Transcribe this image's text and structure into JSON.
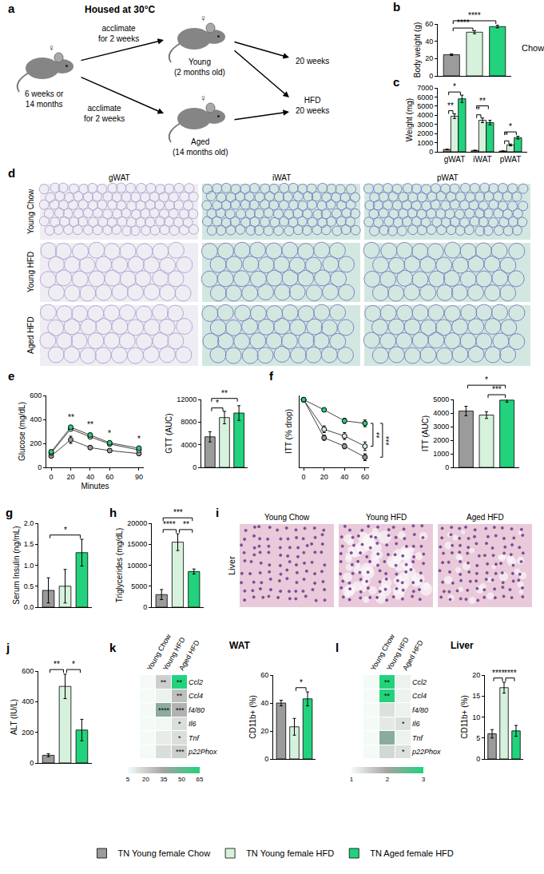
{
  "diagram": {
    "panel": "a",
    "header": "Housed at 30°C",
    "mice": [
      {
        "sex": "♀",
        "label": [
          "6 weeks or",
          "14 months"
        ]
      },
      {
        "sex": "♀",
        "label": [
          "Young",
          "(2 months old)"
        ]
      },
      {
        "sex": "♀",
        "label": [
          "Aged",
          "(14 months old)"
        ]
      }
    ],
    "arrows": [
      [
        "acclimate",
        "for 2 weeks"
      ],
      [
        "acclimate",
        "for 2 weeks"
      ]
    ],
    "outcomes": [
      [
        "20 weeks"
      ],
      [
        "HFD",
        "20 weeks"
      ]
    ]
  },
  "histology": [
    {
      "panel": "d",
      "columns": [
        "gWAT",
        "iWAT",
        "pWAT"
      ],
      "rows": [
        "Young Chow",
        "Young HFD",
        "Aged HFD"
      ]
    },
    {
      "panel": "i",
      "title": "Liver",
      "columns": [
        "Young Chow",
        "Young HFD",
        "Aged HFD"
      ]
    }
  ],
  "chart_data": [
    {
      "panel": "b",
      "type": "bar",
      "ytitle": "Body weight (g)",
      "annotation": "Chow",
      "categories": [
        null,
        null,
        null
      ],
      "values": [
        24.5,
        50.5,
        57
      ],
      "errors": [
        1,
        1.8,
        1.5
      ],
      "colors": [
        "#9b9b9b",
        "#d6f1dc",
        "#22d27c"
      ],
      "ylim": [
        0,
        60
      ],
      "yticks": [
        0,
        20,
        40,
        60
      ],
      "significance": [
        {
          "from": 0,
          "to": 1,
          "label": "****"
        },
        {
          "from": 0,
          "to": 2,
          "label": "****"
        }
      ]
    },
    {
      "panel": "c",
      "type": "bar",
      "ytitle": "Weight (mg)",
      "legend": "bottom",
      "categories": [
        "gWAT",
        "iWAT",
        "pWAT"
      ],
      "series": [
        {
          "name": "TN Young female Chow",
          "color": "#9b9b9b",
          "values": [
            250,
            150,
            80
          ],
          "errors": [
            40,
            30,
            20
          ]
        },
        {
          "name": "TN Young female HFD",
          "color": "#d6f1dc",
          "values": [
            3900,
            3450,
            750
          ],
          "errors": [
            250,
            250,
            100
          ]
        },
        {
          "name": "TN Aged female HFD",
          "color": "#22d27c",
          "values": [
            5800,
            3200,
            1550
          ],
          "errors": [
            400,
            250,
            150
          ]
        }
      ],
      "ylim": [
        0,
        7000
      ],
      "yticks": [
        0,
        1000,
        2000,
        3000,
        4000,
        5000,
        6000,
        7000
      ],
      "significance": [
        {
          "category": 0,
          "from": 0,
          "to": 1,
          "label": "**"
        },
        {
          "category": 0,
          "from": 0,
          "to": 2,
          "label": "*"
        },
        {
          "category": 1,
          "from": 0,
          "to": 1,
          "label": "*"
        },
        {
          "category": 1,
          "from": 0,
          "to": 2,
          "label": "**"
        },
        {
          "category": 2,
          "from": 0,
          "to": 1,
          "label": "*"
        },
        {
          "category": 2,
          "from": 0,
          "to": 2,
          "label": "*"
        }
      ]
    },
    {
      "panel": "e",
      "type": "line",
      "xtitle": "Minutes",
      "ytitle": "Glucose (mg/dL)",
      "marker": "circle",
      "x": [
        0,
        20,
        40,
        60,
        90
      ],
      "xlim": [
        -5,
        95
      ],
      "xticks": [
        0,
        20,
        40,
        60,
        90
      ],
      "ylim": [
        0,
        600
      ],
      "yticks": [
        0,
        200,
        400,
        600
      ],
      "series": [
        {
          "name": "TN Young female Chow",
          "color": "#9b9b9b",
          "values": [
            95,
            230,
            165,
            140,
            115
          ],
          "errors": [
            10,
            30,
            15,
            12,
            10
          ]
        },
        {
          "name": "TN Young female HFD",
          "color": "#d6f1dc",
          "values": [
            120,
            320,
            255,
            195,
            145
          ],
          "errors": [
            10,
            15,
            15,
            12,
            10
          ]
        },
        {
          "name": "TN Aged female HFD",
          "color": "#22d27c",
          "values": [
            130,
            335,
            270,
            205,
            160
          ],
          "errors": [
            10,
            15,
            15,
            10,
            10
          ]
        }
      ],
      "point_labels": [
        {
          "x": 20,
          "label": "**"
        },
        {
          "x": 40,
          "label": "**"
        },
        {
          "x": 60,
          "label": "*"
        },
        {
          "x": 90,
          "label": "*"
        }
      ]
    },
    {
      "type": "bar",
      "ytitle": "GTT (AUC)",
      "categories": [
        null,
        null,
        null
      ],
      "values": [
        5400,
        8800,
        9600
      ],
      "errors": [
        900,
        1100,
        1300
      ],
      "colors": [
        "#9b9b9b",
        "#d6f1dc",
        "#22d27c"
      ],
      "ylim": [
        0,
        12000
      ],
      "yticks": [
        0,
        4000,
        8000,
        12000
      ],
      "significance": [
        {
          "from": 0,
          "to": 1,
          "label": "*"
        },
        {
          "from": 0,
          "to": 2,
          "label": "**"
        }
      ]
    },
    {
      "panel": "f",
      "type": "line",
      "ytitle": "ITT (% drop)",
      "marker": "circle",
      "tick_labels": "x",
      "x": [
        0,
        20,
        40,
        60
      ],
      "xlim": [
        -4,
        64
      ],
      "xticks": [
        0,
        20,
        40,
        60
      ],
      "ylim": [
        20,
        105
      ],
      "series": [
        {
          "name": "TN Young female Chow",
          "color": "#9b9b9b",
          "values": [
            100,
            55,
            45,
            32
          ],
          "errors": [
            0,
            3,
            3,
            4
          ]
        },
        {
          "name": "TN Young female HFD",
          "color": "#d6f1dc",
          "values": [
            100,
            65,
            57,
            45
          ],
          "errors": [
            0,
            4,
            4,
            5
          ]
        },
        {
          "name": "TN Aged female HFD",
          "color": "#22d27c",
          "values": [
            100,
            88,
            75,
            72
          ],
          "errors": [
            0,
            2,
            3,
            4
          ]
        }
      ],
      "significance": [
        {
          "x": 60,
          "from": 2,
          "to": 1,
          "label": "**"
        },
        {
          "x": 60,
          "from": 2,
          "to": 0,
          "label": "***"
        }
      ]
    },
    {
      "type": "bar",
      "ytitle": "ITT (AUC)",
      "categories": [
        null,
        null,
        null
      ],
      "values": [
        4150,
        3850,
        4950
      ],
      "errors": [
        350,
        250,
        150
      ],
      "colors": [
        "#9b9b9b",
        "#d6f1dc",
        "#22d27c"
      ],
      "ylim": [
        0,
        5000
      ],
      "yticks": [
        0,
        1000,
        2000,
        3000,
        4000,
        5000
      ],
      "significance": [
        {
          "from": 1,
          "to": 2,
          "label": "***"
        },
        {
          "from": 0,
          "to": 2,
          "label": "*"
        }
      ]
    },
    {
      "panel": "g",
      "type": "bar",
      "ytitle": "Serum Insulin (ng/mL)",
      "categories": [
        null,
        null,
        null
      ],
      "values": [
        0.4,
        0.5,
        1.3
      ],
      "errors": [
        0.3,
        0.4,
        0.32
      ],
      "colors": [
        "#9b9b9b",
        "#d6f1dc",
        "#22d27c"
      ],
      "ylim": [
        0,
        2
      ],
      "yticks": [
        {
          "value": 0,
          "label": "0.0"
        },
        0.5,
        {
          "value": 1,
          "label": "1.0"
        },
        1.5,
        {
          "value": 2,
          "label": "2.0"
        }
      ],
      "significance": [
        {
          "from": 0,
          "to": 2,
          "label": "*"
        }
      ]
    },
    {
      "panel": "h",
      "type": "bar",
      "ytitle": "Triglycerides (mg/dL)",
      "categories": [
        null,
        null,
        null
      ],
      "values": [
        3000,
        15500,
        8500
      ],
      "errors": [
        1200,
        2000,
        600
      ],
      "colors": [
        "#9b9b9b",
        "#d6f1dc",
        "#22d27c"
      ],
      "ylim": [
        0,
        20000
      ],
      "yticks": [
        0,
        5000,
        10000,
        15000,
        20000
      ],
      "significance": [
        {
          "from": 0,
          "to": 1,
          "label": "****"
        },
        {
          "from": 1,
          "to": 2,
          "label": "**"
        },
        {
          "from": 0,
          "to": 2,
          "label": "***"
        }
      ]
    },
    {
      "panel": "j",
      "type": "bar",
      "ytitle": "ALT (IU/L)",
      "categories": [
        null,
        null,
        null
      ],
      "values": [
        50,
        500,
        215
      ],
      "errors": [
        10,
        80,
        70
      ],
      "colors": [
        "#9b9b9b",
        "#d6f1dc",
        "#22d27c"
      ],
      "ylim": [
        0,
        600
      ],
      "yticks": [
        0,
        200,
        400,
        600
      ],
      "significance": [
        {
          "from": 0,
          "to": 1,
          "label": "**"
        },
        {
          "from": 1,
          "to": 2,
          "label": "*"
        }
      ]
    },
    {
      "panel": "k",
      "type": "heatmap",
      "title": "WAT",
      "columns": [
        "Young Chow",
        "Young HFD",
        "Aged HFD"
      ],
      "rows": [
        "Ccl2",
        "Ccl4",
        "f4/80",
        "Il6",
        "Tnf",
        "p22Phox"
      ],
      "cells": [
        [
          5,
          20,
          65
        ],
        [
          5,
          8,
          25
        ],
        [
          5,
          40,
          30
        ],
        [
          5,
          6,
          15
        ],
        [
          5,
          10,
          15
        ],
        [
          5,
          15,
          20
        ]
      ],
      "cell_labels": [
        [
          null,
          "**",
          "**"
        ],
        [
          null,
          null,
          "**"
        ],
        [
          null,
          "****",
          "***"
        ],
        [
          null,
          null,
          "*"
        ],
        [
          null,
          null,
          "*"
        ],
        [
          null,
          null,
          "***"
        ]
      ],
      "colorscale": [
        "#f4fbf6",
        "#a3a3a3",
        "#22d27c"
      ],
      "colorbar": {
        "range": [
          5,
          65
        ],
        "ticks": [
          5,
          20,
          35,
          50,
          65
        ]
      }
    },
    {
      "type": "bar",
      "ytitle": "CD11b+ (%)",
      "categories": [
        null,
        null,
        null
      ],
      "values": [
        40,
        23,
        43
      ],
      "errors": [
        2,
        6,
        5
      ],
      "colors": [
        "#9b9b9b",
        "#d6f1dc",
        "#22d27c"
      ],
      "ylim": [
        0,
        60
      ],
      "yticks": [
        0,
        20,
        40,
        60
      ],
      "significance": [
        {
          "from": 1,
          "to": 2,
          "label": "*"
        }
      ]
    },
    {
      "panel": "l",
      "type": "heatmap",
      "title": "Liver",
      "columns": [
        "Young Chow",
        "Young HFD",
        "Aged HFD"
      ],
      "rows": [
        "Ccl2",
        "Ccl4",
        "f4/80",
        "Il6",
        "Tnf",
        "p22Phox"
      ],
      "cells": [
        [
          1,
          3,
          1.1
        ],
        [
          1,
          3,
          1.1
        ],
        [
          1,
          1.3,
          1.1
        ],
        [
          1,
          1.2,
          1.3
        ],
        [
          1,
          2.2,
          1.1
        ],
        [
          1,
          1.4,
          1.3
        ]
      ],
      "cell_labels": [
        [
          null,
          "**",
          null
        ],
        [
          null,
          "**",
          null
        ],
        [
          null,
          null,
          null
        ],
        [
          null,
          null,
          "*"
        ],
        [
          null,
          null,
          null
        ],
        [
          null,
          null,
          "*"
        ]
      ],
      "colorscale": [
        "#f4fbf6",
        "#a3a3a3",
        "#22d27c"
      ],
      "colorbar": {
        "range": [
          1,
          3
        ],
        "ticks": [
          1,
          2,
          3
        ]
      }
    },
    {
      "type": "bar",
      "ytitle": "CD11b+ (%)",
      "categories": [
        null,
        null,
        null
      ],
      "values": [
        6,
        17,
        6.7
      ],
      "errors": [
        1,
        1.3,
        1.3
      ],
      "colors": [
        "#9b9b9b",
        "#d6f1dc",
        "#22d27c"
      ],
      "ylim": [
        0,
        20
      ],
      "yticks": [
        0,
        5,
        10,
        15,
        20
      ],
      "significance": [
        {
          "from": 0,
          "to": 1,
          "label": "****"
        },
        {
          "from": 1,
          "to": 2,
          "label": "****"
        }
      ]
    }
  ]
}
